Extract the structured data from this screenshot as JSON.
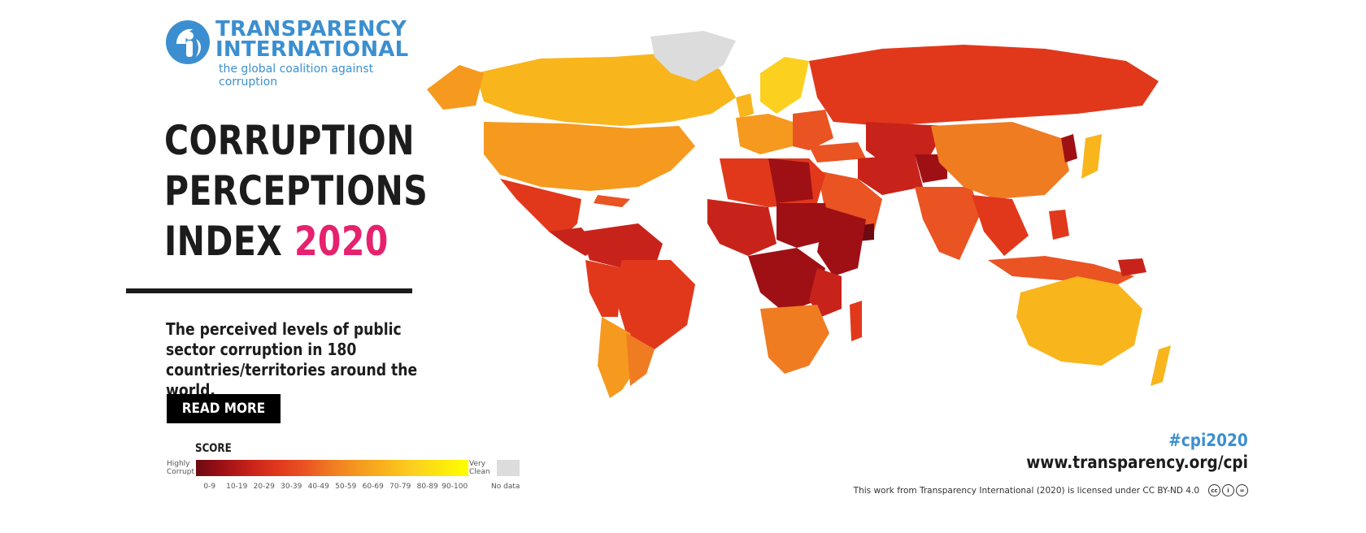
{
  "logo": {
    "line1": "TRANSPARENCY",
    "line2": "INTERNATIONAL",
    "tagline": "the global coalition against corruption"
  },
  "title": {
    "line1": "CORRUPTION",
    "line2": "PERCEPTIONS",
    "line3_prefix": "INDEX ",
    "year": "2020"
  },
  "description": "The perceived levels of public sector corruption in 180 countries/territories around the world.",
  "cta": {
    "label": "READ MORE"
  },
  "legend": {
    "title": "SCORE",
    "low_label": "Highly Corrupt",
    "high_label": "Very Clean",
    "ticks": [
      "0-9",
      "10-19",
      "20-29",
      "30-39",
      "40-49",
      "50-59",
      "60-69",
      "70-79",
      "80-89",
      "90-100"
    ],
    "no_data_label": "No data",
    "colors": [
      "#6e0a12",
      "#9f1015",
      "#c8231a",
      "#e1381c",
      "#ea5322",
      "#f07c22",
      "#f59a1f",
      "#f8b51c",
      "#fcd01e",
      "#ffff00"
    ],
    "no_data_color": "#dcdcdc"
  },
  "footer": {
    "hashtag": "#cpi2020",
    "website": "www.transparency.org/cpi",
    "license": "This work from Transparency International (2020) is licensed under CC BY-ND 4.0",
    "license_icons": [
      "cc",
      "by",
      "nd"
    ]
  }
}
